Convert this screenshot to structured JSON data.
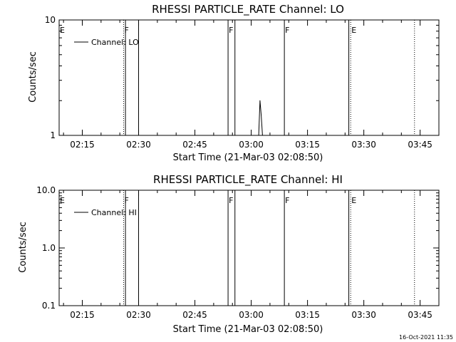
{
  "chart_data": [
    {
      "type": "line",
      "title": "RHESSI PARTICLE_RATE Channel: LO",
      "xlabel": "Start Time (21-Mar-03 02:08:50)",
      "ylabel": "Counts/sec",
      "yscale": "log",
      "ylim": [
        1,
        10
      ],
      "y_ticks": [
        "10",
        "1"
      ],
      "xlim": [
        "02:08:50",
        "03:50:00"
      ],
      "x_ticks": [
        "02:15",
        "02:30",
        "02:45",
        "03:00",
        "03:15",
        "03:30",
        "03:45"
      ],
      "legend": "Channel: LO",
      "legend_position": "top-left",
      "flag_lines": [
        {
          "label": "E",
          "time": "02:08:50",
          "style": "solid"
        },
        {
          "label": "F",
          "time": "02:26:00",
          "style": "dotted"
        },
        {
          "label": "",
          "time": "02:26:30",
          "style": "solid"
        },
        {
          "label": "",
          "time": "02:30:00",
          "style": "solid"
        },
        {
          "label": "F",
          "time": "02:53:50",
          "style": "solid"
        },
        {
          "label": "",
          "time": "02:55:40",
          "style": "solid"
        },
        {
          "label": "F",
          "time": "03:08:50",
          "style": "solid"
        },
        {
          "label": "",
          "time": "03:26:00",
          "style": "solid"
        },
        {
          "label": "E",
          "time": "03:26:30",
          "style": "dotted"
        },
        {
          "label": "",
          "time": "03:43:30",
          "style": "dotted"
        }
      ],
      "series": [
        {
          "values": [
            {
              "t": "03:02:00",
              "y": 1
            },
            {
              "t": "03:02:20",
              "y": 2
            },
            {
              "t": "03:02:40",
              "y": 1.5
            },
            {
              "t": "03:03:00",
              "y": 1
            }
          ]
        }
      ]
    },
    {
      "type": "line",
      "title": "RHESSI PARTICLE_RATE Channel: HI",
      "xlabel": "Start Time (21-Mar-03 02:08:50)",
      "ylabel": "Counts/sec",
      "yscale": "log",
      "ylim": [
        0.1,
        10
      ],
      "y_ticks": [
        "10.0",
        "1.0",
        "0.1"
      ],
      "xlim": [
        "02:08:50",
        "03:50:00"
      ],
      "x_ticks": [
        "02:15",
        "02:30",
        "02:45",
        "03:00",
        "03:15",
        "03:30",
        "03:45"
      ],
      "legend": "Channel: HI",
      "legend_position": "top-left",
      "flag_lines": [
        {
          "label": "E",
          "time": "02:08:50",
          "style": "solid"
        },
        {
          "label": "F",
          "time": "02:26:00",
          "style": "dotted"
        },
        {
          "label": "",
          "time": "02:26:30",
          "style": "solid"
        },
        {
          "label": "",
          "time": "02:30:00",
          "style": "solid"
        },
        {
          "label": "F",
          "time": "02:53:50",
          "style": "solid"
        },
        {
          "label": "",
          "time": "02:55:40",
          "style": "solid"
        },
        {
          "label": "F",
          "time": "03:08:50",
          "style": "solid"
        },
        {
          "label": "",
          "time": "03:26:00",
          "style": "solid"
        },
        {
          "label": "E",
          "time": "03:26:30",
          "style": "dotted"
        },
        {
          "label": "",
          "time": "03:43:30",
          "style": "dotted"
        }
      ],
      "series": []
    }
  ],
  "footer": {
    "timestamp": "16-Oct-2021 11:35"
  }
}
